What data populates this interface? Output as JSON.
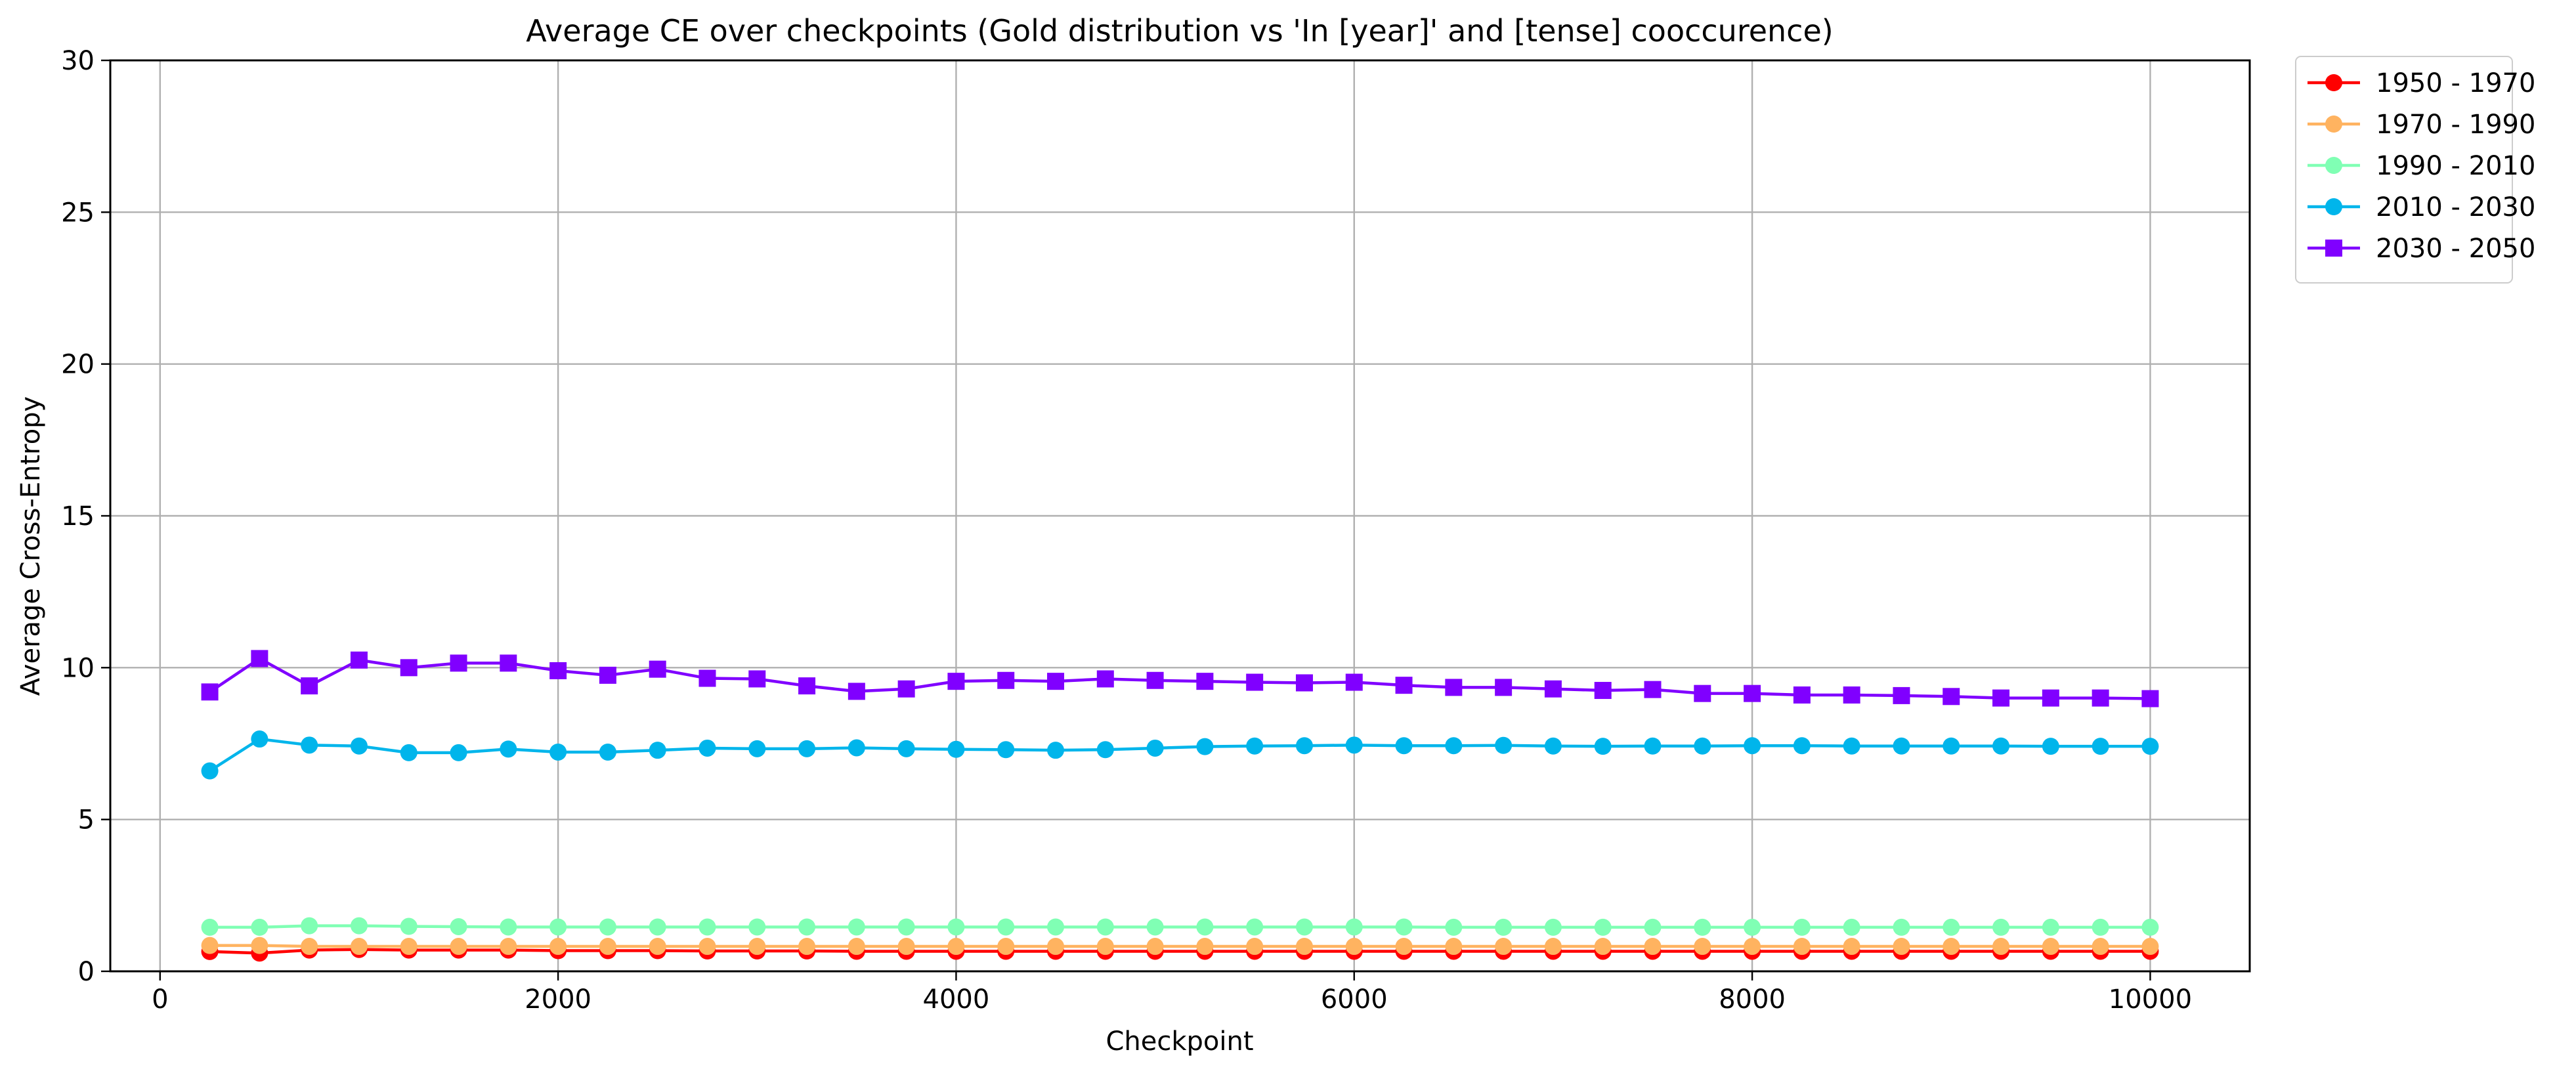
{
  "chart_data": {
    "type": "line",
    "title": "Average CE over checkpoints (Gold distribution vs 'In [year]' and [tense] cooccurence)",
    "xlabel": "Checkpoint",
    "ylabel": "Average Cross-Entropy",
    "xlim": [
      -250,
      10500
    ],
    "ylim": [
      0,
      30
    ],
    "xticks": [
      0,
      2000,
      4000,
      6000,
      8000,
      10000
    ],
    "yticks": [
      0,
      5,
      10,
      15,
      20,
      25,
      30
    ],
    "grid": true,
    "legend_position": "outside-top-right",
    "x": [
      250,
      500,
      750,
      1000,
      1250,
      1500,
      1750,
      2000,
      2250,
      2500,
      2750,
      3000,
      3250,
      3500,
      3750,
      4000,
      4250,
      4500,
      4750,
      5000,
      5250,
      5500,
      5750,
      6000,
      6250,
      6500,
      6750,
      7000,
      7250,
      7500,
      7750,
      8000,
      8250,
      8500,
      8750,
      9000,
      9250,
      9500,
      9750,
      10000
    ],
    "series": [
      {
        "name": "1950 - 1970",
        "color": "#ff0000",
        "marker": "circle",
        "values": [
          0.65,
          0.6,
          0.7,
          0.72,
          0.7,
          0.7,
          0.7,
          0.68,
          0.68,
          0.68,
          0.67,
          0.67,
          0.67,
          0.66,
          0.66,
          0.66,
          0.66,
          0.66,
          0.66,
          0.66,
          0.66,
          0.66,
          0.66,
          0.66,
          0.66,
          0.66,
          0.66,
          0.66,
          0.66,
          0.66,
          0.66,
          0.66,
          0.66,
          0.66,
          0.66,
          0.66,
          0.66,
          0.66,
          0.66,
          0.66
        ]
      },
      {
        "name": "1970 - 1990",
        "color": "#ffb360",
        "marker": "circle",
        "values": [
          0.85,
          0.85,
          0.82,
          0.82,
          0.82,
          0.82,
          0.82,
          0.82,
          0.82,
          0.82,
          0.82,
          0.82,
          0.82,
          0.82,
          0.82,
          0.82,
          0.82,
          0.82,
          0.82,
          0.82,
          0.82,
          0.82,
          0.82,
          0.82,
          0.82,
          0.82,
          0.82,
          0.82,
          0.82,
          0.82,
          0.82,
          0.82,
          0.82,
          0.82,
          0.82,
          0.82,
          0.82,
          0.82,
          0.82,
          0.82
        ]
      },
      {
        "name": "1990 - 2010",
        "color": "#80ffb4",
        "marker": "circle",
        "values": [
          1.45,
          1.45,
          1.5,
          1.5,
          1.48,
          1.47,
          1.46,
          1.46,
          1.46,
          1.46,
          1.46,
          1.46,
          1.46,
          1.46,
          1.46,
          1.46,
          1.46,
          1.46,
          1.46,
          1.46,
          1.46,
          1.46,
          1.46,
          1.46,
          1.46,
          1.45,
          1.45,
          1.45,
          1.45,
          1.45,
          1.45,
          1.45,
          1.45,
          1.45,
          1.45,
          1.45,
          1.45,
          1.45,
          1.45,
          1.45
        ]
      },
      {
        "name": "2010 - 2030",
        "color": "#00b5eb",
        "marker": "circle",
        "values": [
          6.6,
          7.65,
          7.45,
          7.42,
          7.2,
          7.2,
          7.32,
          7.22,
          7.22,
          7.28,
          7.35,
          7.33,
          7.33,
          7.36,
          7.33,
          7.31,
          7.3,
          7.28,
          7.3,
          7.35,
          7.4,
          7.42,
          7.43,
          7.45,
          7.43,
          7.43,
          7.44,
          7.42,
          7.41,
          7.42,
          7.42,
          7.43,
          7.43,
          7.42,
          7.42,
          7.42,
          7.42,
          7.41,
          7.41,
          7.41
        ]
      },
      {
        "name": "2030 - 2050",
        "color": "#8000ff",
        "marker": "square",
        "values": [
          9.2,
          10.3,
          9.4,
          10.25,
          10.0,
          10.15,
          10.15,
          9.9,
          9.75,
          9.95,
          9.65,
          9.63,
          9.4,
          9.22,
          9.3,
          9.55,
          9.58,
          9.55,
          9.63,
          9.58,
          9.55,
          9.52,
          9.5,
          9.52,
          9.42,
          9.35,
          9.35,
          9.3,
          9.25,
          9.28,
          9.15,
          9.15,
          9.1,
          9.1,
          9.08,
          9.05,
          9.0,
          9.0,
          9.0,
          8.98
        ]
      }
    ]
  }
}
